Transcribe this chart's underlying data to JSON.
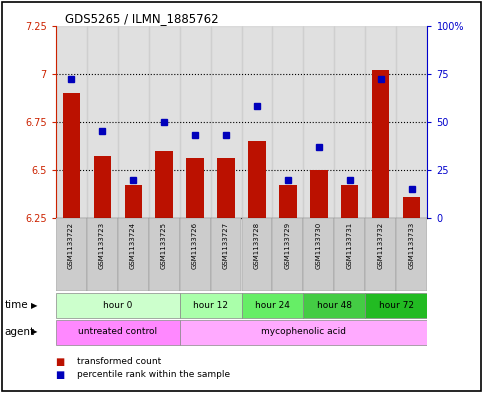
{
  "title": "GDS5265 / ILMN_1885762",
  "samples": [
    "GSM1133722",
    "GSM1133723",
    "GSM1133724",
    "GSM1133725",
    "GSM1133726",
    "GSM1133727",
    "GSM1133728",
    "GSM1133729",
    "GSM1133730",
    "GSM1133731",
    "GSM1133732",
    "GSM1133733"
  ],
  "transformed_count": [
    6.9,
    6.57,
    6.42,
    6.6,
    6.56,
    6.56,
    6.65,
    6.42,
    6.5,
    6.42,
    7.02,
    6.36
  ],
  "percentile_rank": [
    72,
    45,
    20,
    50,
    43,
    43,
    58,
    20,
    37,
    20,
    72,
    15
  ],
  "ylim_left": [
    6.25,
    7.25
  ],
  "ylim_right": [
    0,
    100
  ],
  "yticks_left": [
    6.25,
    6.5,
    6.75,
    7.0,
    7.25
  ],
  "yticks_left_labels": [
    "6.25",
    "6.5",
    "6.75",
    "7",
    "7.25"
  ],
  "yticks_right": [
    0,
    25,
    50,
    75,
    100
  ],
  "yticks_right_labels": [
    "0",
    "25",
    "50",
    "75",
    "100%"
  ],
  "hlines": [
    6.5,
    6.75,
    7.0
  ],
  "bar_color": "#bb1100",
  "dot_color": "#0000bb",
  "bar_width": 0.55,
  "bar_bottom": 6.25,
  "time_groups": [
    {
      "label": "hour 0",
      "start": 0,
      "end": 3,
      "color": "#ccffcc"
    },
    {
      "label": "hour 12",
      "start": 4,
      "end": 5,
      "color": "#aaffaa"
    },
    {
      "label": "hour 24",
      "start": 6,
      "end": 7,
      "color": "#66ee66"
    },
    {
      "label": "hour 48",
      "start": 8,
      "end": 9,
      "color": "#44cc44"
    },
    {
      "label": "hour 72",
      "start": 10,
      "end": 11,
      "color": "#22bb22"
    }
  ],
  "agent_groups": [
    {
      "label": "untreated control",
      "start": 0,
      "end": 3,
      "color": "#ff88ff"
    },
    {
      "label": "mycophenolic acid",
      "start": 4,
      "end": 11,
      "color": "#ffaaff"
    }
  ],
  "legend_bar_label": "transformed count",
  "legend_dot_label": "percentile rank within the sample",
  "time_label": "time",
  "agent_label": "agent",
  "left_axis_color": "#cc2200",
  "right_axis_color": "#0000cc",
  "title_color": "#000000",
  "col_bg_color": "#cccccc",
  "border_color": "#000000"
}
